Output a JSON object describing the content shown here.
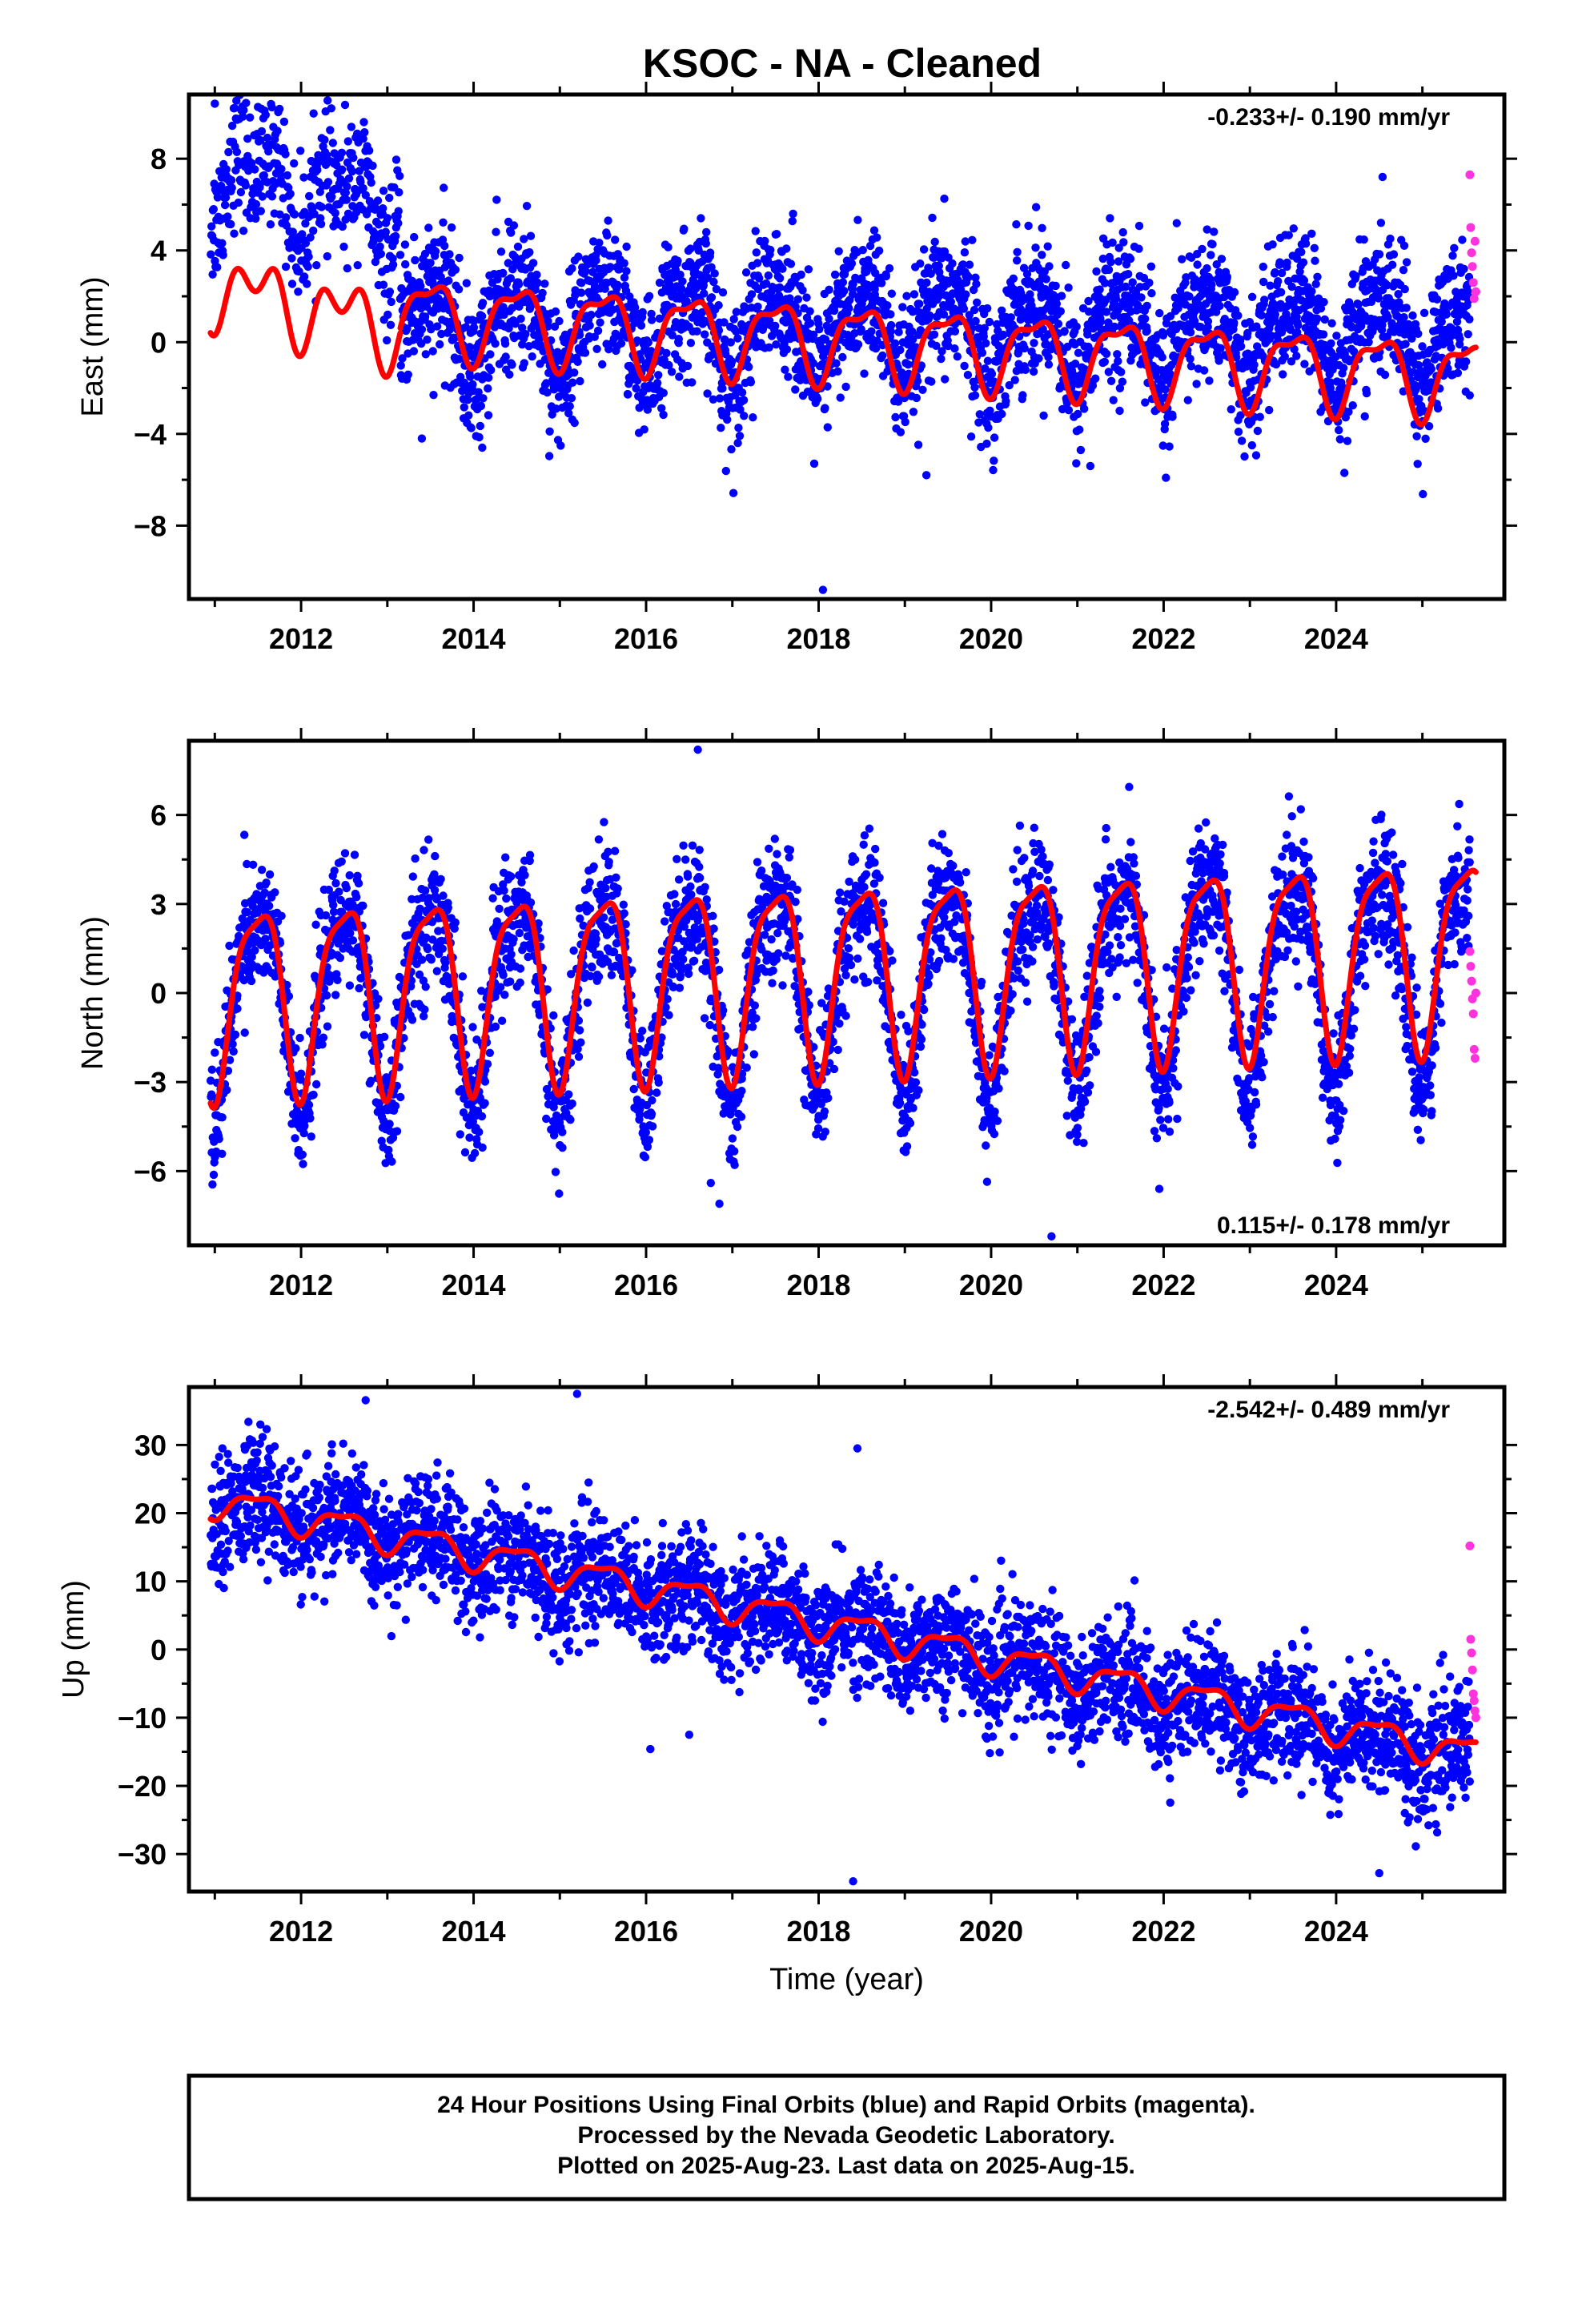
{
  "title": "KSOC  - NA - Cleaned",
  "footer": {
    "line1": "24 Hour Positions Using Final Orbits (blue) and Rapid Orbits (magenta).",
    "line2": "Processed by the Nevada Geodetic Laboratory.",
    "line3": "Plotted on 2025-Aug-23. Last data on 2025-Aug-15."
  },
  "colors": {
    "final": "#0000ff",
    "rapid": "#ff33dd",
    "model": "#ff0000"
  },
  "chart_data": [
    {
      "type": "scatter",
      "ylabel": "East (mm)",
      "xlabel": "",
      "rate": "-0.233+/- 0.190 mm/yr",
      "xlim": [
        2010.7,
        2025.95
      ],
      "ylim": [
        -11.2,
        10.8
      ],
      "xticks": [
        2012,
        2014,
        2016,
        2018,
        2020,
        2022,
        2024
      ],
      "yticks": [
        8,
        4,
        0,
        -4,
        -8
      ],
      "ytick_labels": [
        "8",
        "4",
        "0",
        "−4",
        "−8"
      ],
      "segments": [
        {
          "x0": 2010.95,
          "x1": 2013.15,
          "mean0": 7.5,
          "mean1": 5.6,
          "scatter": 1.4,
          "n": 420
        },
        {
          "x0": 2013.15,
          "x1": 2025.55,
          "mean0": 0.8,
          "mean1": 0.3,
          "scatter": 1.5,
          "n": 3300
        }
      ],
      "model": {
        "segments": [
          {
            "x0": 2010.95,
            "x1": 2013.15,
            "offset": 2.5,
            "trend": -0.9,
            "amp_annual": 1.2,
            "amp_semi": 1.0
          },
          {
            "x0": 2013.15,
            "x1": 2025.62,
            "offset": 1.2,
            "trend": -0.22,
            "amp_annual": 1.6,
            "amp_semi": 0.6
          }
        ]
      },
      "rapid": {
        "x": [
          2025.55,
          2025.56,
          2025.57,
          2025.58,
          2025.59,
          2025.6,
          2025.61,
          2025.62
        ],
        "y": [
          7.3,
          5.0,
          3.9,
          3.3,
          2.6,
          1.9,
          4.4,
          2.2
        ]
      },
      "outliers": {
        "x": [
          2011.0,
          2013.4,
          2014.1,
          2018.05,
          2019.25,
          2021.15
        ],
        "y": [
          10.4,
          -4.2,
          -4.6,
          -10.8,
          -5.8,
          -5.4
        ]
      }
    },
    {
      "type": "scatter",
      "ylabel": "North (mm)",
      "xlabel": "",
      "rate": "0.115+/- 0.178 mm/yr",
      "xlim": [
        2010.7,
        2025.95
      ],
      "ylim": [
        -8.5,
        8.5
      ],
      "xticks": [
        2012,
        2014,
        2016,
        2018,
        2020,
        2022,
        2024
      ],
      "yticks": [
        6,
        3,
        0,
        -3,
        -6
      ],
      "ytick_labels": [
        "6",
        "3",
        "0",
        "−3",
        "−6"
      ],
      "segments": [
        {
          "x0": 2010.95,
          "x1": 2025.55,
          "mean0": -0.2,
          "mean1": 1.0,
          "scatter": 1.1,
          "n": 3700
        }
      ],
      "model": {
        "segments": [
          {
            "x0": 2010.95,
            "x1": 2025.62,
            "offset": 0.0,
            "trend": 0.11,
            "amp_annual": 3.1,
            "amp_semi": 0.8
          }
        ]
      },
      "rapid": {
        "x": [
          2025.55,
          2025.56,
          2025.57,
          2025.58,
          2025.59,
          2025.6,
          2025.61,
          2025.62
        ],
        "y": [
          1.4,
          0.9,
          0.4,
          -0.2,
          -0.7,
          -1.9,
          -2.2,
          0.0
        ]
      },
      "outliers": {
        "x": [
          2016.75,
          2016.85,
          2020.7,
          2021.95,
          2016.6
        ],
        "y": [
          -6.4,
          -7.1,
          -8.2,
          -6.6,
          8.2
        ]
      }
    },
    {
      "type": "scatter",
      "ylabel": "Up (mm)",
      "xlabel": "Time (year)",
      "rate": "-2.542+/- 0.489 mm/yr",
      "xlim": [
        2010.7,
        2025.95
      ],
      "ylim": [
        -35.5,
        38.5
      ],
      "xticks": [
        2012,
        2014,
        2016,
        2018,
        2020,
        2022,
        2024
      ],
      "yticks": [
        30,
        20,
        10,
        0,
        -10,
        -20,
        -30
      ],
      "ytick_labels": [
        "30",
        "20",
        "10",
        "0",
        "−10",
        "−20",
        "−30"
      ],
      "segments": [
        {
          "x0": 2010.95,
          "x1": 2025.55,
          "mean0": 22.0,
          "mean1": -16.0,
          "scatter": 4.3,
          "n": 3700
        }
      ],
      "model": {
        "segments": [
          {
            "x0": 2010.95,
            "x1": 2025.62,
            "offset": 22.0,
            "trend": -2.55,
            "amp_annual": 2.2,
            "amp_semi": 0.8
          }
        ]
      },
      "rapid": {
        "x": [
          2025.55,
          2025.56,
          2025.57,
          2025.58,
          2025.59,
          2025.6,
          2025.61,
          2025.62
        ],
        "y": [
          15.2,
          1.5,
          -0.5,
          -3.0,
          -6.5,
          -7.5,
          -9.0,
          -10.0
        ]
      },
      "outliers": {
        "x": [
          2015.2,
          2018.45,
          2018.4,
          2024.5,
          2016.5
        ],
        "y": [
          37.5,
          29.5,
          -34.0,
          -32.8,
          -12.5
        ]
      }
    }
  ]
}
